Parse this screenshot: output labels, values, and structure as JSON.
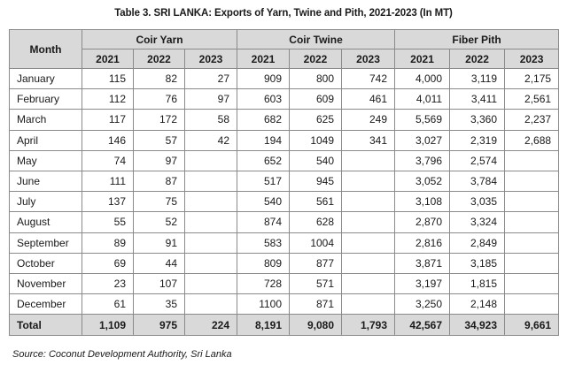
{
  "title": "Table 3. SRI LANKA: Exports of Yarn, Twine and Pith, 2021-2023 (In MT)",
  "header": {
    "month_label": "Month",
    "groups": [
      "Coir Yarn",
      "Coir Twine",
      "Fiber Pith"
    ],
    "years": [
      "2021",
      "2022",
      "2023",
      "2021",
      "2022",
      "2023",
      "2021",
      "2022",
      "2023"
    ]
  },
  "rows": [
    {
      "month": "January",
      "values": [
        "115",
        "82",
        "27",
        "909",
        "800",
        "742",
        "4,000",
        "3,119",
        "2,175"
      ]
    },
    {
      "month": "February",
      "values": [
        "112",
        "76",
        "97",
        "603",
        "609",
        "461",
        "4,011",
        "3,411",
        "2,561"
      ]
    },
    {
      "month": "March",
      "values": [
        "117",
        "172",
        "58",
        "682",
        "625",
        "249",
        "5,569",
        "3,360",
        "2,237"
      ]
    },
    {
      "month": "April",
      "values": [
        "146",
        "57",
        "42",
        "194",
        "1049",
        "341",
        "3,027",
        "2,319",
        "2,688"
      ]
    },
    {
      "month": "May",
      "values": [
        "74",
        "97",
        "",
        "652",
        "540",
        "",
        "3,796",
        "2,574",
        ""
      ]
    },
    {
      "month": "June",
      "values": [
        "111",
        "87",
        "",
        "517",
        "945",
        "",
        "3,052",
        "3,784",
        ""
      ]
    },
    {
      "month": "July",
      "values": [
        "137",
        "75",
        "",
        "540",
        "561",
        "",
        "3,108",
        "3,035",
        ""
      ]
    },
    {
      "month": "August",
      "values": [
        "55",
        "52",
        "",
        "874",
        "628",
        "",
        "2,870",
        "3,324",
        ""
      ]
    },
    {
      "month": "September",
      "values": [
        "89",
        "91",
        "",
        "583",
        "1004",
        "",
        "2,816",
        "2,849",
        ""
      ]
    },
    {
      "month": "October",
      "values": [
        "69",
        "44",
        "",
        "809",
        "877",
        "",
        "3,871",
        "3,185",
        ""
      ]
    },
    {
      "month": "November",
      "values": [
        "23",
        "107",
        "",
        "728",
        "571",
        "",
        "3,197",
        "1,815",
        ""
      ]
    },
    {
      "month": "December",
      "values": [
        "61",
        "35",
        "",
        "1100",
        "871",
        "",
        "3,250",
        "2,148",
        ""
      ]
    }
  ],
  "total": {
    "month": "Total",
    "values": [
      "1,109",
      "975",
      "224",
      "8,191",
      "9,080",
      "1,793",
      "42,567",
      "34,923",
      "9,661"
    ]
  },
  "source": "Source: Coconut Development Authority, Sri Lanka",
  "colors": {
    "header_bg": "#d9d9d9",
    "border": "#8a8a8a"
  }
}
